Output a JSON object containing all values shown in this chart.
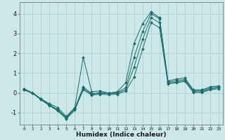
{
  "xlabel": "Humidex (Indice chaleur)",
  "ylabel": "",
  "background_color": "#cce8e8",
  "grid_color": "#aacccc",
  "line_color": "#1a6b6b",
  "xlim": [
    -0.5,
    23.5
  ],
  "ylim": [
    -1.6,
    4.6
  ],
  "xticks": [
    0,
    1,
    2,
    3,
    4,
    5,
    6,
    7,
    8,
    9,
    10,
    11,
    12,
    13,
    14,
    15,
    16,
    17,
    18,
    19,
    20,
    21,
    22,
    23
  ],
  "yticks": [
    -1,
    0,
    1,
    2,
    3,
    4
  ],
  "lines": [
    [
      0.2,
      0.0,
      -0.3,
      -0.55,
      -0.75,
      -1.2,
      -0.75,
      1.8,
      0.05,
      0.1,
      -0.02,
      0.05,
      0.5,
      2.5,
      3.5,
      4.1,
      3.8,
      0.6,
      0.7,
      0.75,
      0.15,
      0.15,
      0.3,
      0.35
    ],
    [
      0.2,
      0.0,
      -0.3,
      -0.6,
      -0.85,
      -1.25,
      -0.8,
      0.3,
      -0.05,
      0.02,
      -0.02,
      0.02,
      0.25,
      1.8,
      3.1,
      4.0,
      3.75,
      0.55,
      0.62,
      0.68,
      0.1,
      0.1,
      0.25,
      0.3
    ],
    [
      0.15,
      -0.02,
      -0.32,
      -0.62,
      -0.88,
      -1.28,
      -0.83,
      0.22,
      -0.08,
      -0.02,
      -0.05,
      -0.02,
      0.15,
      1.3,
      2.7,
      3.8,
      3.55,
      0.5,
      0.55,
      0.62,
      0.05,
      0.05,
      0.2,
      0.25
    ],
    [
      0.15,
      -0.02,
      -0.35,
      -0.65,
      -0.92,
      -1.32,
      -0.88,
      0.15,
      -0.12,
      -0.07,
      -0.1,
      -0.07,
      0.08,
      0.8,
      2.2,
      3.55,
      3.3,
      0.45,
      0.5,
      0.58,
      0.02,
      0.02,
      0.15,
      0.2
    ]
  ]
}
